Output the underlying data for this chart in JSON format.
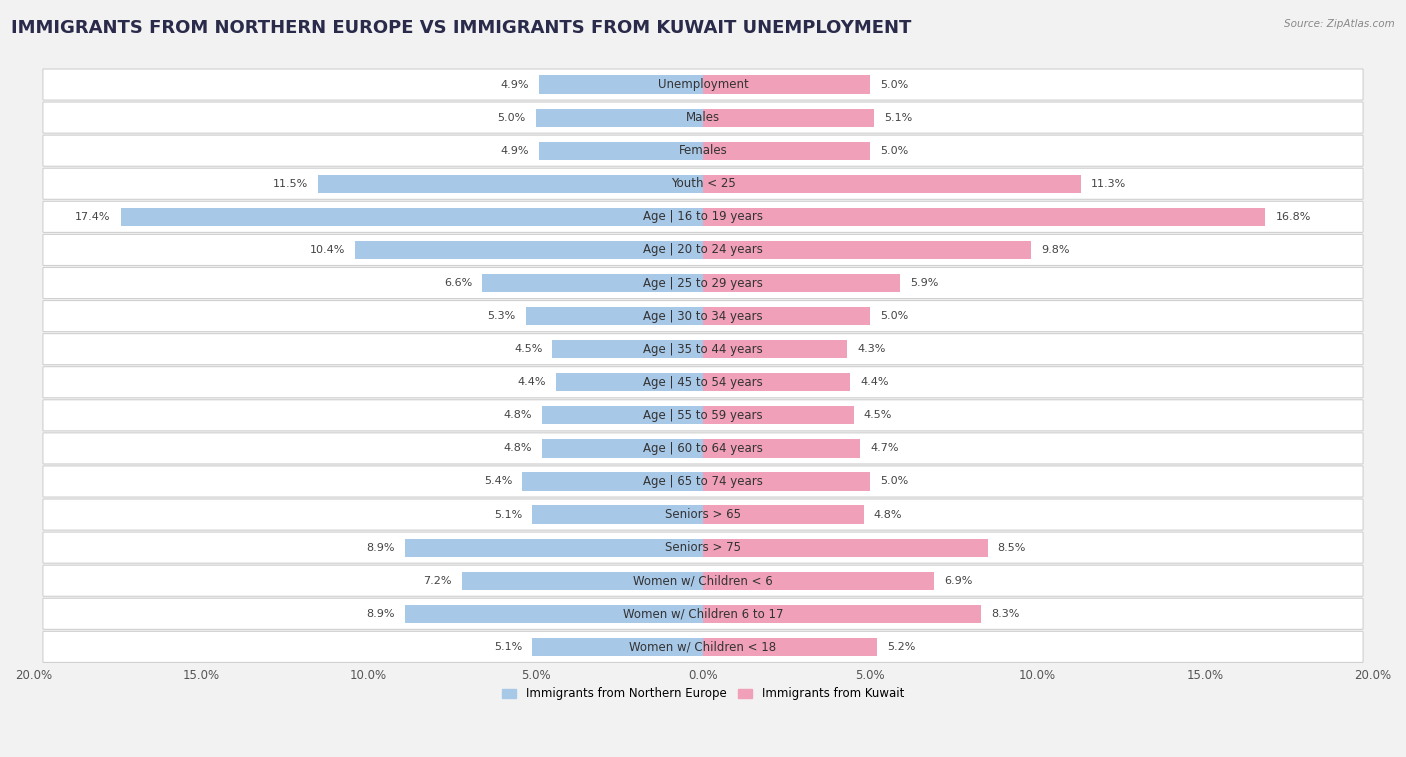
{
  "title": "IMMIGRANTS FROM NORTHERN EUROPE VS IMMIGRANTS FROM KUWAIT UNEMPLOYMENT",
  "source": "Source: ZipAtlas.com",
  "categories": [
    "Unemployment",
    "Males",
    "Females",
    "Youth < 25",
    "Age | 16 to 19 years",
    "Age | 20 to 24 years",
    "Age | 25 to 29 years",
    "Age | 30 to 34 years",
    "Age | 35 to 44 years",
    "Age | 45 to 54 years",
    "Age | 55 to 59 years",
    "Age | 60 to 64 years",
    "Age | 65 to 74 years",
    "Seniors > 65",
    "Seniors > 75",
    "Women w/ Children < 6",
    "Women w/ Children 6 to 17",
    "Women w/ Children < 18"
  ],
  "left_values": [
    4.9,
    5.0,
    4.9,
    11.5,
    17.4,
    10.4,
    6.6,
    5.3,
    4.5,
    4.4,
    4.8,
    4.8,
    5.4,
    5.1,
    8.9,
    7.2,
    8.9,
    5.1
  ],
  "right_values": [
    5.0,
    5.1,
    5.0,
    11.3,
    16.8,
    9.8,
    5.9,
    5.0,
    4.3,
    4.4,
    4.5,
    4.7,
    5.0,
    4.8,
    8.5,
    6.9,
    8.3,
    5.2
  ],
  "left_color": "#a8c8e8",
  "right_color": "#f0a0b8",
  "left_label": "Immigrants from Northern Europe",
  "right_label": "Immigrants from Kuwait",
  "xlim": 20.0,
  "bar_height": 0.55,
  "bg_color": "#f2f2f2",
  "row_bg_color": "#ffffff",
  "row_border_color": "#d0d0d0",
  "title_fontsize": 13,
  "label_fontsize": 8.5,
  "value_fontsize": 8,
  "axis_fontsize": 8.5
}
